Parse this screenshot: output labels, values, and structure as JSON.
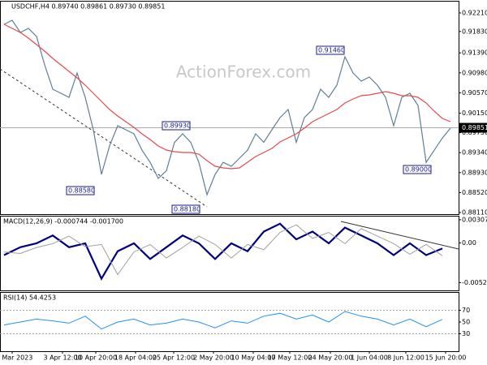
{
  "chart_data": [
    {
      "type": "line",
      "title": "USDCHF,H4 0.89740 0.89861 0.89730 0.89851",
      "watermark": "ActionForex.com",
      "xlim": [
        -0.5,
        56
      ],
      "ylim": [
        0.88077,
        0.92443
      ],
      "yticks": [
        {
          "value": 0.9221,
          "label": "0.92210"
        },
        {
          "value": 0.9183,
          "label": "0.91830"
        },
        {
          "value": 0.9139,
          "label": "0.91390"
        },
        {
          "value": 0.9098,
          "label": "0.90980"
        },
        {
          "value": 0.9057,
          "label": "0.90570"
        },
        {
          "value": 0.9015,
          "label": "0.90150"
        },
        {
          "value": 0.8975,
          "label": "0.89750"
        },
        {
          "value": 0.8934,
          "label": "0.89340"
        },
        {
          "value": 0.8893,
          "label": "0.88930"
        },
        {
          "value": 0.8852,
          "label": "0.88520"
        },
        {
          "value": 0.8811,
          "label": "0.88110"
        }
      ],
      "current_price": {
        "value": 0.89851,
        "label": "0.89851"
      },
      "annotations": [
        "0.91460",
        "0.89930",
        "0.88580",
        "0.88180",
        "0.89000"
      ],
      "series": [
        {
          "name": "USDCHF",
          "color": "#5f7f94",
          "values": [
            0.91977,
            0.9206,
            0.9181,
            0.91893,
            0.91727,
            0.91143,
            0.90643,
            0.9056,
            0.90477,
            0.90977,
            0.90477,
            0.8981,
            0.88893,
            0.8948,
            0.89893,
            0.8981,
            0.89727,
            0.8939,
            0.8914,
            0.8881,
            0.8897,
            0.89553,
            0.89727,
            0.89553,
            0.8914,
            0.88477,
            0.88893,
            0.8914,
            0.8906,
            0.89227,
            0.8939,
            0.89727,
            0.89553,
            0.8981,
            0.9006,
            0.90227,
            0.89553,
            0.9006,
            0.90227,
            0.90643,
            0.90477,
            0.90727,
            0.9131,
            0.90977,
            0.9081,
            0.90893,
            0.90727,
            0.90477,
            0.89893,
            0.90477,
            0.9056,
            0.9031,
            0.8914,
            0.8939,
            0.8964,
            0.89843
          ]
        },
        {
          "name": "MA",
          "color": "#e8494b",
          "values": [
            0.91977,
            0.91893,
            0.9181,
            0.91693,
            0.9156,
            0.91427,
            0.91277,
            0.91143,
            0.9101,
            0.90877,
            0.90727,
            0.9056,
            0.90393,
            0.90227,
            0.90093,
            0.89977,
            0.8986,
            0.89727,
            0.8961,
            0.89477,
            0.89393,
            0.8936,
            0.89343,
            0.89343,
            0.8931,
            0.89177,
            0.8906,
            0.89027,
            0.8901,
            0.89027,
            0.89143,
            0.8926,
            0.89343,
            0.89427,
            0.8956,
            0.89643,
            0.89727,
            0.89843,
            0.89977,
            0.9006,
            0.90143,
            0.90227,
            0.9036,
            0.90443,
            0.9051,
            0.90527,
            0.9056,
            0.90593,
            0.9056,
            0.9051,
            0.9051,
            0.90477,
            0.9036,
            0.90193,
            0.90043,
            0.89977
          ]
        }
      ]
    },
    {
      "type": "line",
      "title": "MACD(12,26,9) -0.000744 -0.001700",
      "xlim": [
        -0.25,
        28
      ],
      "ylim": [
        -0.0063,
        0.0035
      ],
      "yticks": [
        0.003078,
        {
          "value": 0,
          "label": "0.00"
        },
        -0.005268
      ],
      "series": [
        {
          "name": "MACD",
          "color": "#000080",
          "width": 2.2,
          "values": [
            -0.001616,
            -0.000572,
            -5.1e-05,
            0.000992,
            -0.000572,
            -5.1e-05,
            -0.004745,
            -0.001094,
            -5.1e-05,
            -0.002137,
            -0.000572,
            0.000992,
            -5.1e-05,
            -0.002137,
            -5.1e-05,
            -0.001094,
            0.001513,
            0.002556,
            0.00047,
            0.001513,
            -5.1e-05,
            0.002035,
            0.000992,
            -5.1e-05,
            -0.001616,
            -5.1e-05,
            -0.001616,
            -0.000744
          ]
        },
        {
          "name": "Signal",
          "color": "#a0a0a0",
          "width": 1,
          "values": [
            -0.0012,
            -0.0014,
            -0.0006,
            -0.0001,
            0.0009,
            -0.0005,
            -0.0002,
            -0.0042,
            -0.0012,
            -0.0002,
            -0.002,
            -0.0006,
            0.0009,
            -0.0002,
            -0.002,
            -0.0002,
            -0.0009,
            0.0014,
            0.0024,
            0.0006,
            0.0014,
            -0.0001,
            0.0019,
            0.0009,
            -0.0001,
            -0.0015,
            -0.0002,
            -0.0017
          ]
        }
      ]
    },
    {
      "type": "line",
      "title": "RSI(14) 54.4253",
      "xlim": [
        -0.25,
        28
      ],
      "ylim": [
        0,
        100
      ],
      "yticks": [
        70,
        50,
        30
      ],
      "levels": [
        70,
        30
      ],
      "xticks": [
        {
          "value": 0.5,
          "label": "27 Mar 2023"
        },
        {
          "value": 3.6,
          "label": "3 Apr 12:00"
        },
        {
          "value": 5.65,
          "label": "10 Apr 20:00"
        },
        {
          "value": 8.1,
          "label": "18 Apr 04:00"
        },
        {
          "value": 10.45,
          "label": "25 Apr 12:00"
        },
        {
          "value": 12.9,
          "label": "2 May 20:00"
        },
        {
          "value": 15.35,
          "label": "10 May 04:00"
        },
        {
          "value": 17.6,
          "label": "17 May 12:00"
        },
        {
          "value": 20.1,
          "label": "24 May 20:00"
        },
        {
          "value": 22.5,
          "label": "1 Jun 04:00"
        },
        {
          "value": 24.75,
          "label": "8 Jun 12:00"
        },
        {
          "value": 27.2,
          "label": "15 Jun 20:00"
        }
      ],
      "series": [
        {
          "name": "RSI",
          "color": "#1e90ff",
          "width": 1,
          "values": [
            45,
            50,
            55,
            52,
            48,
            60,
            38,
            50,
            55,
            45,
            48,
            55,
            50,
            40,
            52,
            48,
            60,
            65,
            55,
            62,
            50,
            68,
            60,
            55,
            45,
            55,
            42,
            54.4253
          ]
        }
      ]
    }
  ]
}
